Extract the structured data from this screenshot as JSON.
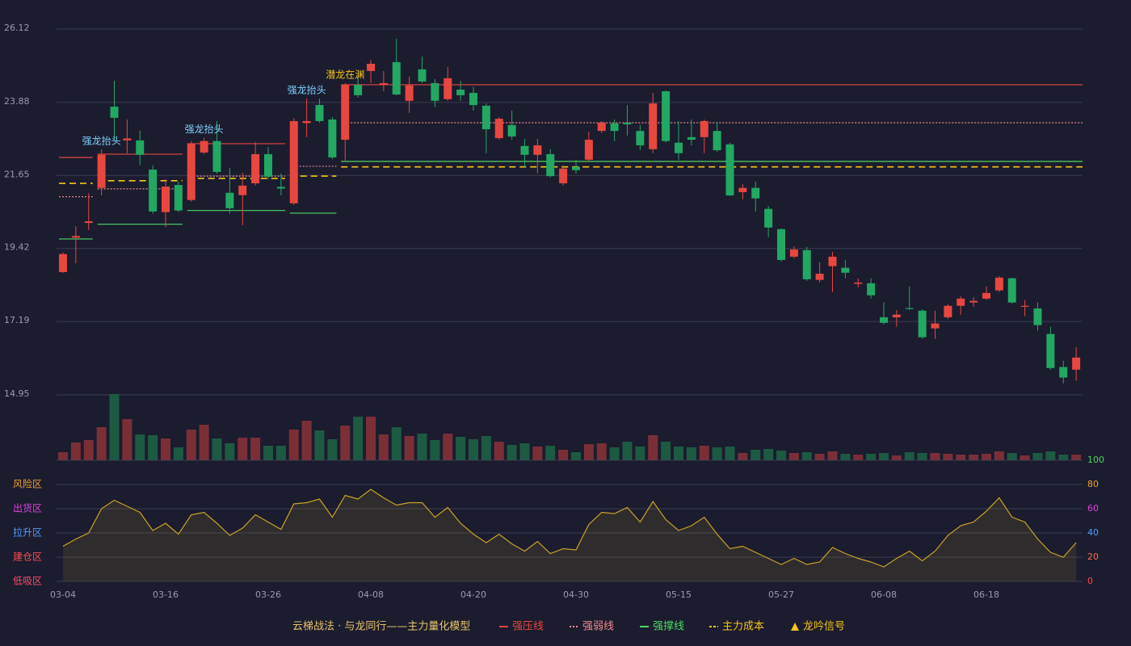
{
  "chart_data": [
    {
      "type": "candlestick",
      "legend_title": "云梯战法 · 与龙同行——主力量化模型",
      "categories": [
        "03-04",
        null,
        null,
        null,
        null,
        null,
        null,
        null,
        "03-16",
        null,
        null,
        null,
        null,
        null,
        null,
        null,
        "03-26",
        null,
        null,
        null,
        null,
        null,
        null,
        null,
        "04-08",
        null,
        null,
        null,
        null,
        null,
        null,
        null,
        "04-20",
        null,
        null,
        null,
        null,
        null,
        null,
        null,
        "04-30",
        null,
        null,
        null,
        null,
        null,
        null,
        null,
        "05-15",
        null,
        null,
        null,
        null,
        null,
        null,
        null,
        "05-27",
        null,
        null,
        null,
        null,
        null,
        null,
        null,
        "06-08",
        null,
        null,
        null,
        null,
        null,
        null,
        null,
        "06-18",
        null,
        null,
        null,
        null,
        null,
        null,
        null
      ],
      "open": [
        18.7,
        19.75,
        20.2,
        21.27,
        23.75,
        22.72,
        22.72,
        21.83,
        20.53,
        21.36,
        20.9,
        22.35,
        22.7,
        21.12,
        21.05,
        21.41,
        22.3,
        21.3,
        20.8,
        23.25,
        23.8,
        23.36,
        22.74,
        24.42,
        24.84,
        24.43,
        25.11,
        23.93,
        24.89,
        24.47,
        23.98,
        24.27,
        24.17,
        23.78,
        22.79,
        23.19,
        22.55,
        22.28,
        22.3,
        21.41,
        21.91,
        22.13,
        23.01,
        23.24,
        23.26,
        23.01,
        22.45,
        24.22,
        22.65,
        22.82,
        22.82,
        23.01,
        22.6,
        21.14,
        21.27,
        20.63,
        20.01,
        19.17,
        19.37,
        18.46,
        18.88,
        18.83,
        18.34,
        18.36,
        17.32,
        17.32,
        17.6,
        17.52,
        16.98,
        17.32,
        17.67,
        17.77,
        17.89,
        18.14,
        18.51,
        17.64,
        17.59,
        16.81,
        15.8,
        15.72
      ],
      "high": [
        19.3,
        20.1,
        21.1,
        22.45,
        24.54,
        23.36,
        23.02,
        21.96,
        21.54,
        21.46,
        22.7,
        22.8,
        23.31,
        21.88,
        21.73,
        22.67,
        22.52,
        21.71,
        23.4,
        24.0,
        24.0,
        23.43,
        24.47,
        24.79,
        25.18,
        24.84,
        25.82,
        24.67,
        25.28,
        24.59,
        24.96,
        24.54,
        24.35,
        23.85,
        23.43,
        23.63,
        22.77,
        22.77,
        22.45,
        21.96,
        22.13,
        22.99,
        23.31,
        23.36,
        23.8,
        23.19,
        24.17,
        24.25,
        23.31,
        23.36,
        23.36,
        23.26,
        22.65,
        21.39,
        21.46,
        20.72,
        20.03,
        19.49,
        19.47,
        19.0,
        19.32,
        19.07,
        18.51,
        18.51,
        17.77,
        17.54,
        18.26,
        17.57,
        17.52,
        17.72,
        17.96,
        17.94,
        18.26,
        18.58,
        18.53,
        17.84,
        17.77,
        17.03,
        15.99,
        16.41
      ],
      "low": [
        18.68,
        18.97,
        19.98,
        21.04,
        22.7,
        22.33,
        21.96,
        20.48,
        20.06,
        20.53,
        20.85,
        22.3,
        21.71,
        20.48,
        20.13,
        21.34,
        21.54,
        21.04,
        20.75,
        22.82,
        23.26,
        22.15,
        22.08,
        24.03,
        24.47,
        24.22,
        24.1,
        23.56,
        24.47,
        23.73,
        23.93,
        23.93,
        23.63,
        22.33,
        22.74,
        22.74,
        21.91,
        21.71,
        21.59,
        21.34,
        21.71,
        22.08,
        22.94,
        22.7,
        22.87,
        22.42,
        22.33,
        22.65,
        22.13,
        22.57,
        22.33,
        22.37,
        21.02,
        20.92,
        20.55,
        19.76,
        19.02,
        19.12,
        18.43,
        18.38,
        18.09,
        18.51,
        18.23,
        17.89,
        17.1,
        17.03,
        17.54,
        16.66,
        16.66,
        17.27,
        17.4,
        17.64,
        17.84,
        18.09,
        17.74,
        17.35,
        16.91,
        15.72,
        15.3,
        15.38
      ],
      "close": [
        19.25,
        19.8,
        20.25,
        22.28,
        23.41,
        22.78,
        22.28,
        20.55,
        21.31,
        20.58,
        22.62,
        22.7,
        21.76,
        20.65,
        21.34,
        22.3,
        21.61,
        21.25,
        23.31,
        23.31,
        23.31,
        22.2,
        24.42,
        24.1,
        25.06,
        24.47,
        24.12,
        24.4,
        24.52,
        23.93,
        24.62,
        24.1,
        23.8,
        23.06,
        23.38,
        22.84,
        22.28,
        22.57,
        21.63,
        21.86,
        21.81,
        22.74,
        23.26,
        23.01,
        23.21,
        22.57,
        23.85,
        22.7,
        22.33,
        22.74,
        23.31,
        22.42,
        21.04,
        21.27,
        20.95,
        20.06,
        19.07,
        19.39,
        18.48,
        18.65,
        19.17,
        18.68,
        18.38,
        17.99,
        17.15,
        17.4,
        17.57,
        16.71,
        17.13,
        17.67,
        17.89,
        17.82,
        18.06,
        18.53,
        17.77,
        17.67,
        17.08,
        15.77,
        15.48,
        16.09
      ],
      "up_color": "#e8473f",
      "down_color": "#22a862",
      "ylim": [
        14.95,
        26.12
      ],
      "yticks": [
        14.95,
        17.19,
        19.42,
        21.65,
        23.88,
        26.12
      ],
      "grid": true,
      "overlays": [
        {
          "name": "强压线",
          "color": "#e8473f",
          "style": "solid",
          "segments": [
            {
              "start": 0,
              "end": 2,
              "value": 22.2
            },
            {
              "start": 3,
              "end": 9,
              "value": 22.3
            },
            {
              "start": 10,
              "end": 17,
              "value": 22.62
            },
            {
              "start": 22,
              "end": 79,
              "value": 24.42
            }
          ]
        },
        {
          "name": "强弱线",
          "color": "#f08a8a",
          "style": "dotted",
          "segments": [
            {
              "start": 0,
              "end": 2,
              "value": 21.0
            },
            {
              "start": 3,
              "end": 9,
              "value": 21.24
            },
            {
              "start": 10,
              "end": 17,
              "value": 21.63
            },
            {
              "start": 18,
              "end": 21,
              "value": 21.93
            },
            {
              "start": 22,
              "end": 79,
              "value": 23.26
            }
          ]
        },
        {
          "name": "强撑线",
          "color": "#4cd964",
          "style": "solid",
          "segments": [
            {
              "start": 0,
              "end": 2,
              "value": 19.71
            },
            {
              "start": 3,
              "end": 9,
              "value": 20.16
            },
            {
              "start": 10,
              "end": 17,
              "value": 20.58
            },
            {
              "start": 18,
              "end": 21,
              "value": 20.5
            },
            {
              "start": 22,
              "end": 79,
              "value": 22.08
            }
          ]
        },
        {
          "name": "主力成本",
          "color": "#f5c518",
          "style": "dashed",
          "segments": [
            {
              "start": 0,
              "end": 2,
              "value": 21.41
            },
            {
              "start": 3,
              "end": 9,
              "value": 21.49
            },
            {
              "start": 10,
              "end": 17,
              "value": 21.56
            },
            {
              "start": 18,
              "end": 21,
              "value": 21.63
            },
            {
              "start": 22,
              "end": 79,
              "value": 21.91
            }
          ]
        }
      ],
      "signal_legend": {
        "name": "龙吟信号",
        "color": "#f5c518"
      },
      "signals": [
        {
          "index": 3,
          "text": "强龙抬头",
          "color": "#7fd0ff"
        },
        {
          "index": 11,
          "text": "强龙抬头",
          "color": "#7fd0ff"
        },
        {
          "index": 19,
          "text": "强龙抬头",
          "color": "#7fd0ff"
        },
        {
          "index": 22,
          "text": "潜龙在渊",
          "color": "#f5c518"
        }
      ]
    },
    {
      "type": "bar",
      "values": [
        10,
        22,
        25,
        41,
        82,
        51,
        32,
        31,
        27,
        16,
        38,
        44,
        27,
        21,
        28,
        28,
        18,
        18,
        38,
        49,
        37,
        26,
        43,
        54,
        54,
        32,
        41,
        30,
        33,
        25,
        33,
        29,
        26,
        30,
        23,
        19,
        21,
        17,
        18,
        13,
        10,
        20,
        21,
        16,
        23,
        17,
        31,
        23,
        17,
        16,
        18,
        16,
        17,
        9,
        13,
        14,
        12,
        9,
        10,
        8,
        11,
        8,
        7,
        8,
        9,
        6,
        10,
        9,
        9,
        8,
        7,
        7,
        8,
        11,
        9,
        6,
        9,
        11,
        7,
        7
      ],
      "up_color": "#7a2f37",
      "down_color": "#1d5a42"
    },
    {
      "type": "line",
      "values": [
        29,
        35,
        40,
        60,
        67,
        62,
        57,
        42,
        48,
        39,
        55,
        57,
        48,
        38,
        44,
        55,
        49,
        43,
        64,
        65,
        68,
        53,
        71,
        68,
        76,
        69,
        63,
        65,
        65,
        53,
        61,
        48,
        39,
        32,
        39,
        31,
        25,
        33,
        23,
        27,
        26,
        47,
        57,
        56,
        61,
        49,
        66,
        51,
        42,
        46,
        53,
        39,
        27,
        29,
        24,
        19,
        14,
        19,
        14,
        16,
        28,
        23,
        19,
        16,
        12,
        19,
        25,
        17,
        25,
        38,
        46,
        49,
        58,
        69,
        53,
        49,
        35,
        24,
        20,
        32
      ],
      "color": "#c9a227",
      "ylim": [
        0,
        100
      ],
      "yticks": [
        0,
        20,
        40,
        60,
        80,
        100
      ],
      "ytick_colors": [
        "#ff4d4d",
        "#ff6b4a",
        "#4d9fff",
        "#e040e0",
        "#f0a030",
        "#4cd964"
      ],
      "zones": [
        {
          "label": "风险区",
          "value": 80,
          "color": "#f0a030"
        },
        {
          "label": "出货区",
          "value": 60,
          "color": "#e040e0"
        },
        {
          "label": "拉升区",
          "value": 40,
          "color": "#4d9fff"
        },
        {
          "label": "建仓区",
          "value": 20,
          "color": "#ff4d4d"
        },
        {
          "label": "低吸区",
          "value": 0,
          "color": "#ff4d6a"
        }
      ]
    }
  ]
}
